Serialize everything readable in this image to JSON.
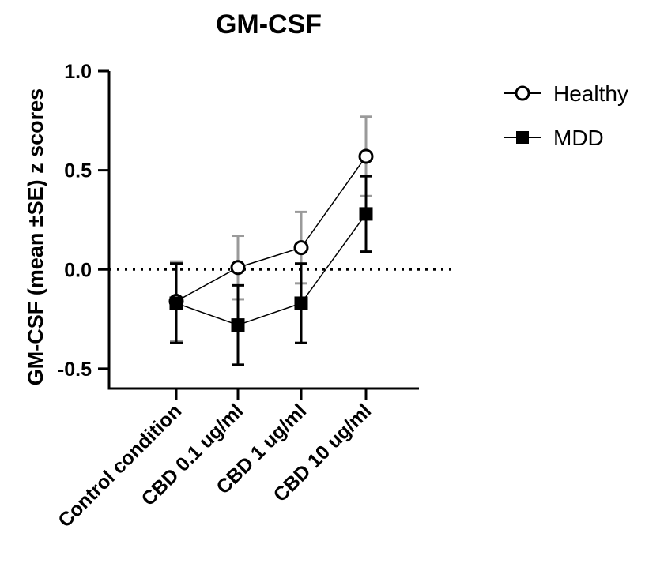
{
  "chart_data": {
    "type": "line",
    "title": "GM-CSF",
    "xlabel": "",
    "ylabel": "GM-CSF (mean ±SE) z scores",
    "categories": [
      "Control condition",
      "CBD 0.1 ug/ml",
      "CBD 1 ug/ml",
      "CBD 10 ug/ml"
    ],
    "yticks": [
      "1.0",
      "0.5",
      "0.0",
      "-0.5"
    ],
    "ylim": [
      -0.6,
      1.0
    ],
    "reference_line": 0.0,
    "legend_position": "right",
    "series": [
      {
        "name": "Healthy",
        "marker": "open-circle",
        "values": [
          -0.16,
          0.01,
          0.11,
          0.57
        ],
        "se": [
          0.2,
          0.16,
          0.18,
          0.2
        ]
      },
      {
        "name": "MDD",
        "marker": "filled-square",
        "values": [
          -0.17,
          -0.28,
          -0.17,
          0.28
        ],
        "se": [
          0.2,
          0.2,
          0.2,
          0.19
        ]
      }
    ],
    "colors": {
      "line": "#000000",
      "error_bar": "#9a9a9a",
      "mdd_error_bar": "#000000",
      "axis": "#000000"
    }
  }
}
